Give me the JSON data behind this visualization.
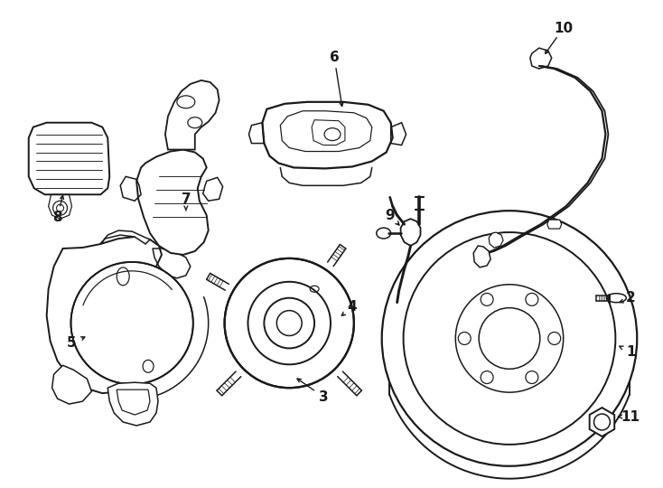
{
  "bg_color": "#ffffff",
  "line_color": "#1a1a1a",
  "fig_width": 7.34,
  "fig_height": 5.4,
  "dpi": 100,
  "lw": 1.1
}
